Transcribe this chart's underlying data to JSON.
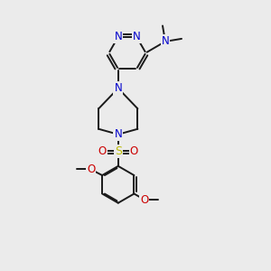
{
  "bg_color": "#ebebeb",
  "atom_color_N": "#0000cc",
  "atom_color_O": "#cc0000",
  "atom_color_S": "#bbbb00",
  "atom_color_C": "#000000",
  "bond_color": "#1a1a1a",
  "figsize": [
    3.0,
    3.0
  ],
  "dpi": 100,
  "xlim": [
    0,
    10
  ],
  "ylim": [
    0,
    10
  ]
}
